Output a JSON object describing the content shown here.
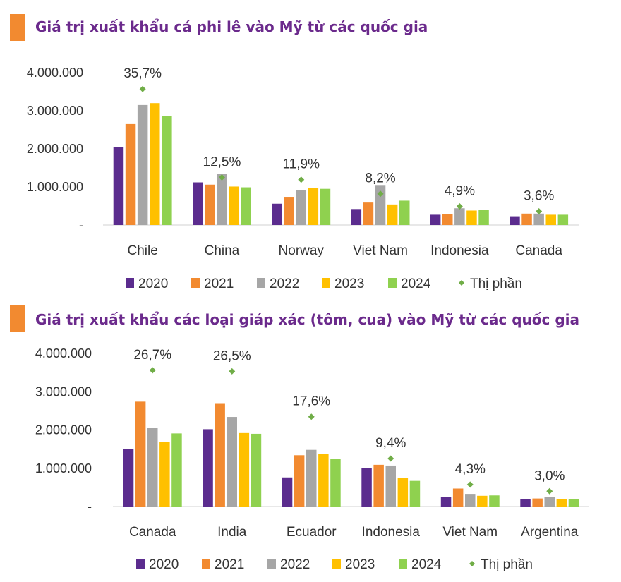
{
  "chart_data": [
    {
      "type": "bar",
      "title": "Giá trị xuất khẩu cá phi lê vào Mỹ từ các quốc gia",
      "categories": [
        "Chile",
        "China",
        "Norway",
        "Viet Nam",
        "Indonesia",
        "Canada"
      ],
      "y_ticks": [
        "4.000.000",
        "3.000.000",
        "2.000.000",
        "1.000.000",
        "-"
      ],
      "ylim": [
        0,
        4000000
      ],
      "series": [
        {
          "name": "2020",
          "color": "#5b2c8e",
          "values": [
            2050000,
            1120000,
            560000,
            420000,
            270000,
            230000
          ]
        },
        {
          "name": "2021",
          "color": "#f28a30",
          "values": [
            2650000,
            1060000,
            740000,
            590000,
            290000,
            300000
          ]
        },
        {
          "name": "2022",
          "color": "#a6a6a6",
          "values": [
            3150000,
            1340000,
            910000,
            1050000,
            440000,
            300000
          ]
        },
        {
          "name": "2023",
          "color": "#ffc000",
          "values": [
            3200000,
            1010000,
            980000,
            540000,
            380000,
            270000
          ]
        },
        {
          "name": "2024",
          "color": "#8fd14f",
          "values": [
            2870000,
            990000,
            950000,
            640000,
            390000,
            270000
          ]
        }
      ],
      "share": {
        "name": "Thị phần",
        "color": "#70ad47",
        "values": [
          35.7,
          12.5,
          11.9,
          8.2,
          4.9,
          3.6
        ],
        "labels": [
          "35,7%",
          "12,5%",
          "11,9%",
          "8,2%",
          "4,9%",
          "3,6%"
        ]
      }
    },
    {
      "type": "bar",
      "title": "Giá trị xuất khẩu các loại giáp xác (tôm, cua) vào Mỹ từ các quốc gia",
      "categories": [
        "Canada",
        "India",
        "Ecuador",
        "Indonesia",
        "Viet Nam",
        "Argentina"
      ],
      "y_ticks": [
        "4.000.000",
        "3.000.000",
        "2.000.000",
        "1.000.000",
        "-"
      ],
      "ylim": [
        0,
        4000000
      ],
      "series": [
        {
          "name": "2020",
          "color": "#5b2c8e",
          "values": [
            1500000,
            2020000,
            760000,
            1000000,
            250000,
            200000
          ]
        },
        {
          "name": "2021",
          "color": "#f28a30",
          "values": [
            2740000,
            2700000,
            1340000,
            1090000,
            470000,
            210000
          ]
        },
        {
          "name": "2022",
          "color": "#a6a6a6",
          "values": [
            2050000,
            2340000,
            1480000,
            1070000,
            330000,
            240000
          ]
        },
        {
          "name": "2023",
          "color": "#ffc000",
          "values": [
            1680000,
            1920000,
            1370000,
            750000,
            280000,
            200000
          ]
        },
        {
          "name": "2024",
          "color": "#8fd14f",
          "values": [
            1910000,
            1900000,
            1250000,
            670000,
            290000,
            200000
          ]
        }
      ],
      "share": {
        "name": "Thị phần",
        "color": "#70ad47",
        "values": [
          26.7,
          26.5,
          17.6,
          9.4,
          4.3,
          3.0
        ],
        "labels": [
          "26,7%",
          "26,5%",
          "17,6%",
          "9,4%",
          "4,3%",
          "3,0%"
        ]
      }
    }
  ]
}
